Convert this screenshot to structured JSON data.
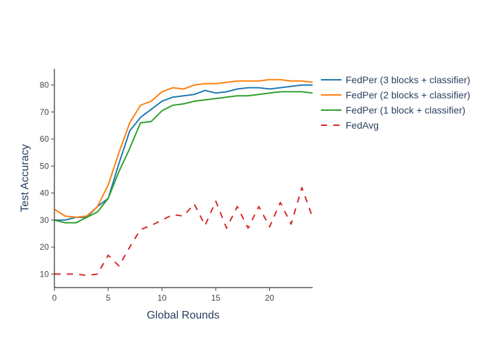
{
  "chart_data": {
    "type": "line",
    "xlabel": "Global Rounds",
    "ylabel": "Test Accuracy",
    "xlim": [
      0,
      24
    ],
    "ylim": [
      5,
      86
    ],
    "xticks": [
      0,
      5,
      10,
      15,
      20
    ],
    "yticks": [
      10,
      20,
      30,
      40,
      50,
      60,
      70,
      80
    ],
    "grid": false,
    "legend_position": "top-right",
    "x": [
      0,
      1,
      2,
      3,
      4,
      5,
      6,
      7,
      8,
      9,
      10,
      11,
      12,
      13,
      14,
      15,
      16,
      17,
      18,
      19,
      20,
      21,
      22,
      23,
      24
    ],
    "series": [
      {
        "name": "FedPer (3 blocks + classifier)",
        "color": "#1f77b4",
        "dash": "solid",
        "values": [
          30,
          30,
          31,
          31,
          35,
          38,
          51,
          63,
          68,
          71,
          74,
          75.5,
          76,
          76.5,
          78,
          77,
          77.5,
          78.5,
          79,
          79,
          78.5,
          79,
          79.5,
          80,
          80
        ]
      },
      {
        "name": "FedPer (2 blocks + classifier)",
        "color": "#ff7f0e",
        "dash": "solid",
        "values": [
          34,
          31.5,
          31,
          31.5,
          35,
          43,
          55,
          66,
          72.5,
          74,
          77.5,
          79,
          78.5,
          80,
          80.5,
          80.5,
          81,
          81.5,
          81.5,
          81.5,
          82,
          82,
          81.5,
          81.5,
          81
        ]
      },
      {
        "name": "FedPer (1 block + classifier)",
        "color": "#2ca02c",
        "dash": "solid",
        "values": [
          30,
          29,
          29,
          31,
          33,
          38,
          48,
          56.5,
          66,
          66.5,
          70.5,
          72.5,
          73,
          74,
          74.5,
          75,
          75.5,
          76,
          76,
          76.5,
          77,
          77.5,
          77.5,
          77.5,
          77
        ]
      },
      {
        "name": "FedAvg",
        "color": "#d62728",
        "dash": "dash",
        "values": [
          10,
          10,
          10,
          9.5,
          10,
          17,
          13,
          20,
          26.5,
          28,
          30,
          32,
          31.5,
          36,
          28,
          37,
          27,
          35,
          27,
          35,
          27.5,
          36.5,
          28.5,
          42,
          31
        ]
      }
    ]
  }
}
